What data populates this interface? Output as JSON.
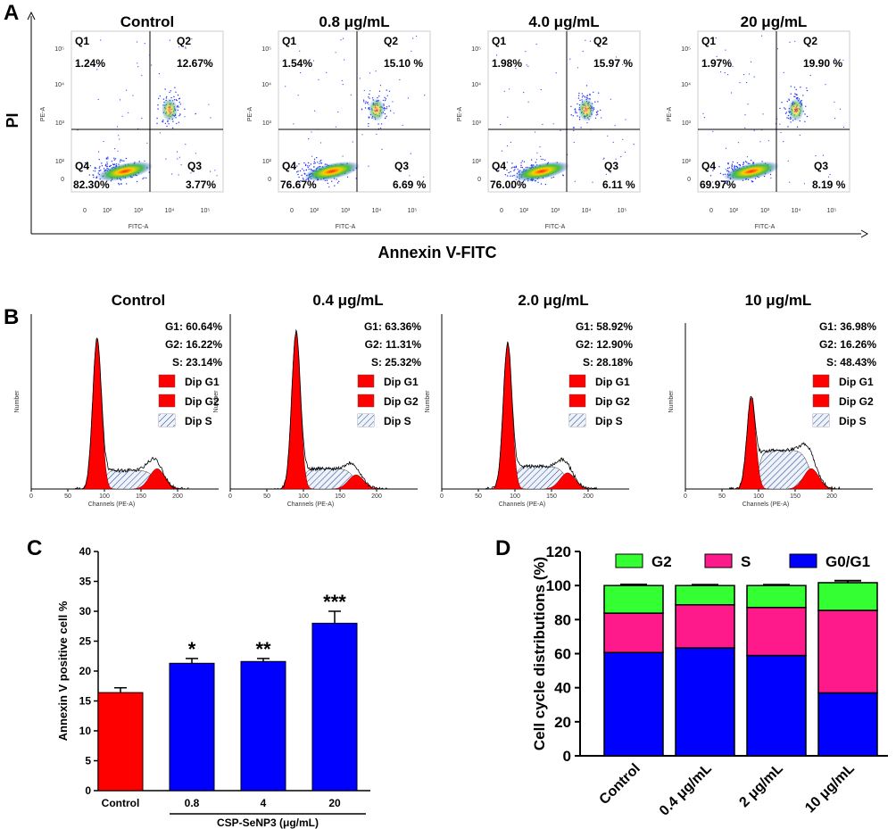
{
  "chart_data": [
    {
      "type": "flow-cytometry",
      "panel": "A",
      "y_label": "PI",
      "x_label": "Annexin V-FITC",
      "plot_x_label": "FITC-A",
      "plot_y_label": "PE-A",
      "ticks": [
        "0",
        "10²",
        "10³",
        "10⁴",
        "10⁵"
      ],
      "quadrants": [
        "Q1",
        "Q2",
        "Q3",
        "Q4"
      ],
      "plots": [
        {
          "title": "Control",
          "values": [
            1.24,
            12.67,
            3.77,
            82.3
          ],
          "value_labels": [
            "1.24%",
            "12.67%",
            "3.77%",
            "82.30%"
          ]
        },
        {
          "title": "0.8 μg/mL",
          "values": [
            1.54,
            15.1,
            6.69,
            76.67
          ],
          "value_labels": [
            "1.54%",
            "15.10 %",
            "6.69 %",
            "76.67%"
          ]
        },
        {
          "title": "4.0 μg/mL",
          "values": [
            1.98,
            15.97,
            6.11,
            76.0
          ],
          "value_labels": [
            "1.98%",
            "15.97 %",
            "6.11 %",
            "76.00%"
          ]
        },
        {
          "title": "20 μg/mL",
          "values": [
            1.97,
            19.9,
            8.19,
            69.97
          ],
          "value_labels": [
            "1.97%",
            "19.90 %",
            "8.19 %",
            "69.97%"
          ]
        }
      ]
    },
    {
      "type": "cell-cycle",
      "panel": "B",
      "x_label": "Channels (PE-A)",
      "y_label": "Number",
      "xlim": [
        0,
        250
      ],
      "xticks": [
        0,
        50,
        100,
        150,
        200
      ],
      "legend": [
        "Dip G1",
        "Dip G2",
        "Dip S"
      ],
      "legend_colors": [
        "#ff0000",
        "#ff0000",
        "#a9c1e2"
      ],
      "plots": [
        {
          "title": "Control",
          "values": [
            60.64,
            16.22,
            23.14
          ],
          "value_labels": [
            "G1: 60.64%",
            "G2: 16.22%",
            "S: 23.14%"
          ],
          "s_color": "#1f6fc0"
        },
        {
          "title": "0.4 μg/mL",
          "values": [
            63.36,
            11.31,
            25.32
          ],
          "value_labels": [
            "G1: 63.36%",
            "G2: 11.31%",
            "S: 25.32%"
          ],
          "s_color": "#1f6fc0"
        },
        {
          "title": "2.0 μg/mL",
          "values": [
            58.92,
            12.9,
            28.18
          ],
          "value_labels": [
            "G1: 58.92%",
            "G2: 12.90%",
            "S: 28.18%"
          ],
          "s_color": "#1f6fc0"
        },
        {
          "title": "10 μg/mL",
          "values": [
            36.98,
            16.26,
            48.43
          ],
          "value_labels": [
            "G1: 36.98%",
            "G2: 16.26%",
            "S: 48.43%"
          ],
          "s_color": "#000000"
        }
      ]
    },
    {
      "type": "bar",
      "panel": "C",
      "y_label": "Annexin V positive cell %",
      "x_label": "CSP-SeNP3 (μg/mL)",
      "categories": [
        "Control",
        "0.8",
        "4",
        "20"
      ],
      "values": [
        16.4,
        21.3,
        21.6,
        28.0
      ],
      "errors": [
        0.8,
        0.8,
        0.5,
        2.0
      ],
      "colors": [
        "#ff0000",
        "#0000ff",
        "#0000ff",
        "#0000ff"
      ],
      "annotations": [
        null,
        "*",
        "**",
        "***"
      ],
      "ylim": [
        0,
        40
      ],
      "yticks": [
        0,
        5,
        10,
        15,
        20,
        25,
        30,
        35,
        40
      ]
    },
    {
      "type": "stacked-bar",
      "panel": "D",
      "y_label": "Cell cycle distributions (%)",
      "categories": [
        "Control",
        "0.4 μg/mL",
        "2 μg/mL",
        "10 μg/mL"
      ],
      "series": [
        {
          "name": "G0/G1",
          "color": "#0000ff",
          "values": [
            60.64,
            63.36,
            58.92,
            36.98
          ],
          "errors": [
            0.7,
            0.6,
            0.8,
            1.3
          ]
        },
        {
          "name": "S",
          "color": "#ff1a8c",
          "values": [
            23.14,
            25.32,
            28.18,
            48.43
          ],
          "errors": [
            0.6,
            0.6,
            0.7,
            1.0
          ]
        },
        {
          "name": "G2",
          "color": "#33ff33",
          "values": [
            16.22,
            11.31,
            12.9,
            16.26
          ],
          "errors": [
            0.6,
            0.5,
            0.5,
            1.2
          ]
        }
      ],
      "ylim": [
        0,
        120
      ],
      "yticks": [
        0,
        20,
        40,
        60,
        80,
        100,
        120
      ]
    }
  ]
}
